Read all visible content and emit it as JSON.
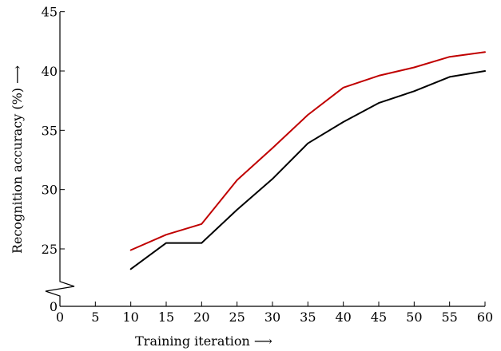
{
  "chart_data": {
    "type": "line",
    "title": "",
    "xlabel": "Training iteration ⟶",
    "ylabel": "Recognition accuracy (%) ⟶",
    "xlim": [
      0,
      60
    ],
    "x_ticks": [
      0,
      5,
      10,
      15,
      20,
      25,
      30,
      35,
      40,
      45,
      50,
      55,
      60
    ],
    "y_ticks": [
      0,
      25,
      30,
      35,
      40,
      45
    ],
    "y_axis_break": {
      "from": 0,
      "to": 20
    },
    "ylim_upper": [
      20,
      45
    ],
    "grid": false,
    "x": [
      10,
      15,
      20,
      25,
      30,
      35,
      40,
      45,
      50,
      55,
      60
    ],
    "series": [
      {
        "color": "#c00000",
        "values": [
          24.9,
          26.2,
          27.1,
          30.8,
          33.5,
          36.3,
          38.6,
          39.6,
          40.3,
          41.2,
          41.6
        ]
      },
      {
        "color": "#000000",
        "values": [
          23.3,
          25.5,
          25.5,
          28.3,
          30.9,
          33.9,
          35.7,
          37.3,
          38.3,
          39.5,
          40.0
        ]
      }
    ]
  }
}
